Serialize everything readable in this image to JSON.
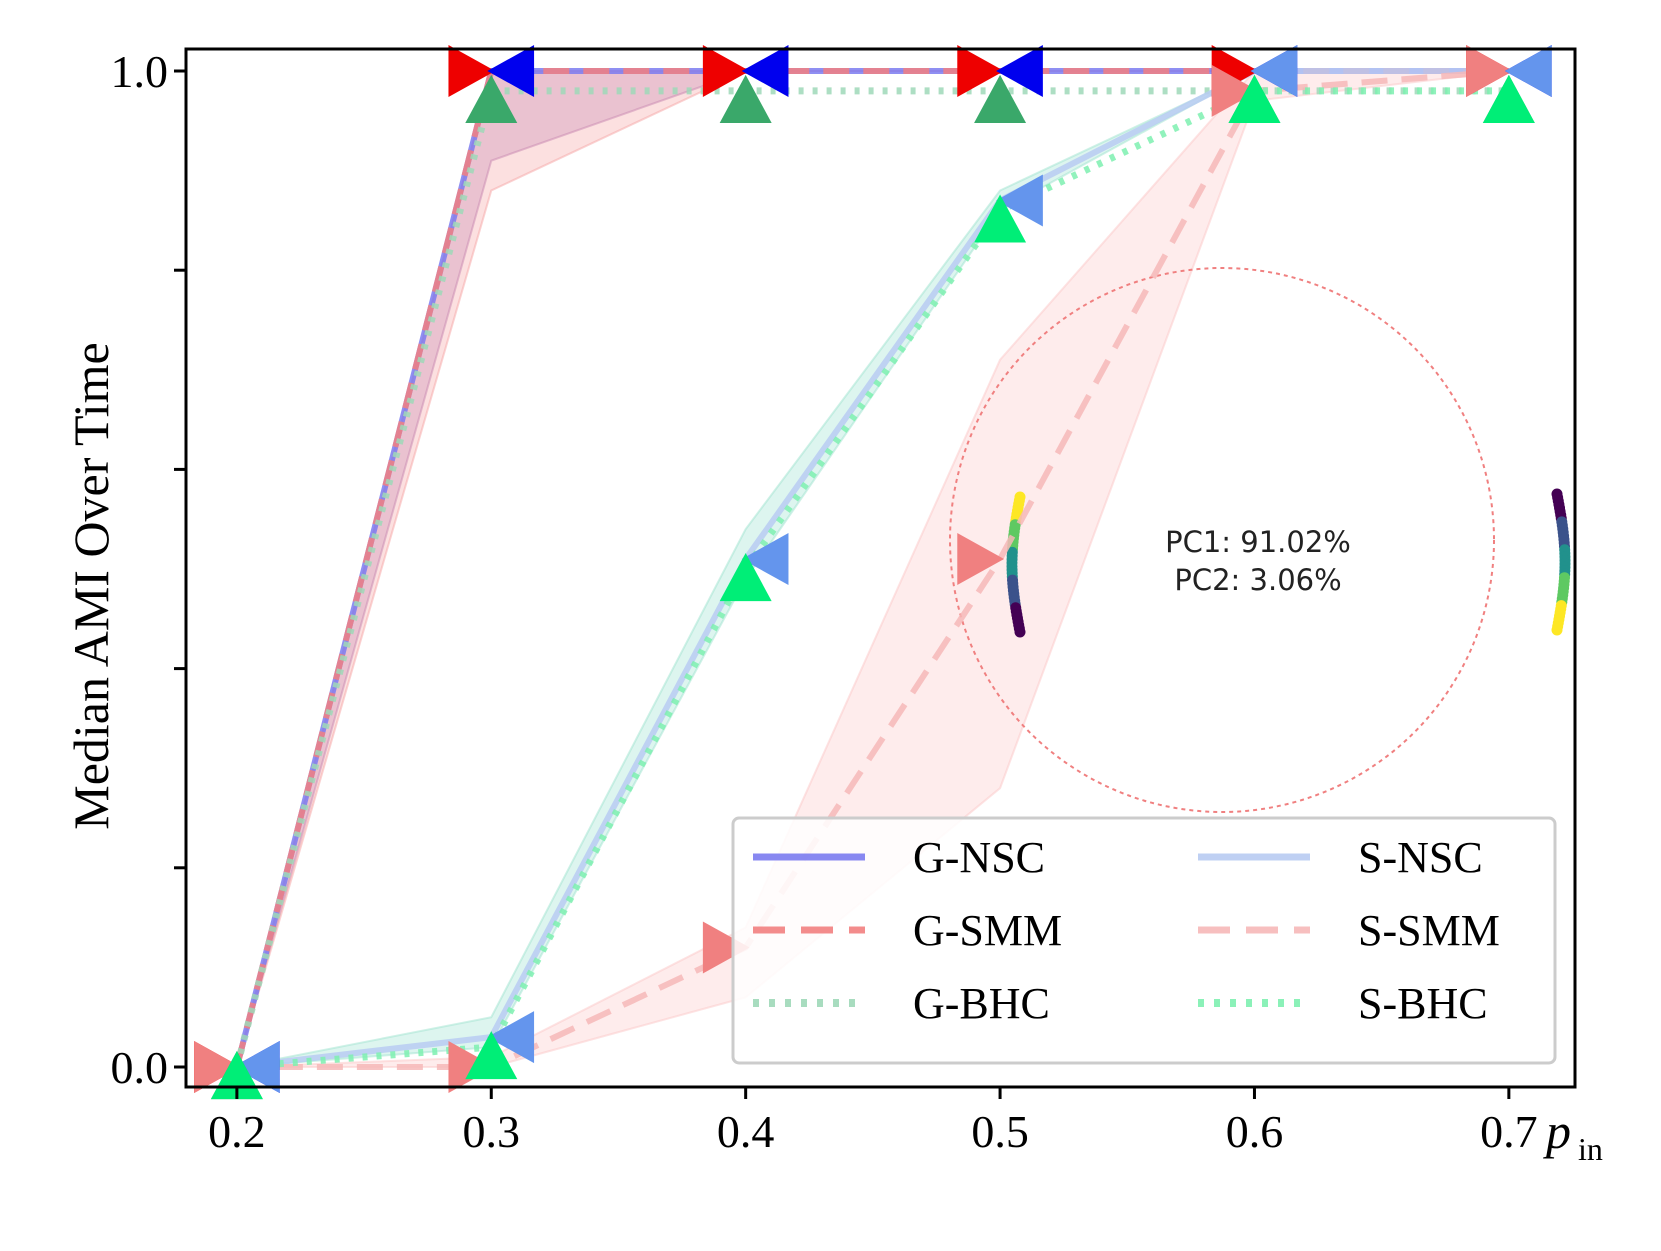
{
  "chart_data": {
    "type": "line",
    "title": "",
    "xlabel": "p",
    "xlabel_sub": "in",
    "ylabel": "Median AMI Over Time",
    "xlim": [
      0.18,
      0.726
    ],
    "ylim": [
      0.0,
      1.0
    ],
    "x_ticks": [
      0.2,
      0.3,
      0.4,
      0.5,
      0.6,
      0.7
    ],
    "x_tick_labels": [
      "0.2",
      "0.3",
      "0.4",
      "0.5",
      "0.6",
      "0.7"
    ],
    "y_tick_labels": [
      "0.0",
      "1.0"
    ],
    "y_minor_ticks": [
      0.2,
      0.4,
      0.6,
      0.8
    ],
    "x": [
      0.2,
      0.3,
      0.4,
      0.5,
      0.6,
      0.7
    ],
    "series": [
      {
        "name": "G-NSC",
        "values": [
          0.0,
          1.0,
          1.0,
          1.0,
          1.0,
          1.0
        ],
        "color": "#7b7bf0",
        "style": "solid",
        "marker": "left-triangle",
        "marker_color": "#0000ee",
        "band": [
          [
            0.0,
            0.0
          ],
          [
            0.91,
            1.0
          ],
          [
            1.0,
            1.0
          ],
          [
            1.0,
            1.0
          ],
          [
            1.0,
            1.0
          ],
          [
            1.0,
            1.0
          ]
        ],
        "band_color": "#b07ab8"
      },
      {
        "name": "G-SMM",
        "values": [
          0.0,
          1.0,
          1.0,
          1.0,
          1.0,
          1.0
        ],
        "color": "#f28080",
        "style": "dashed",
        "marker": "right-triangle",
        "marker_color": "#ee0000",
        "band": [
          [
            0.0,
            0.0
          ],
          [
            0.88,
            1.0
          ],
          [
            1.0,
            1.0
          ],
          [
            1.0,
            1.0
          ],
          [
            1.0,
            1.0
          ],
          [
            1.0,
            1.0
          ]
        ],
        "band_color": "#f6a5a5"
      },
      {
        "name": "G-BHC",
        "values": [
          0.0,
          0.98,
          0.98,
          0.98,
          0.98,
          0.98
        ],
        "color": "#9fd8b8",
        "style": "dotted",
        "marker": "up-triangle",
        "marker_color": "#3aa86a"
      },
      {
        "name": "S-NSC",
        "values": [
          0.0,
          0.03,
          0.51,
          0.87,
          1.0,
          1.0
        ],
        "color": "#b8cbf2",
        "style": "solid",
        "marker": "left-triangle",
        "marker_color": "#6495ed",
        "band": [
          [
            0.0,
            0.0
          ],
          [
            0.02,
            0.05
          ],
          [
            0.49,
            0.54
          ],
          [
            0.86,
            0.88
          ],
          [
            1.0,
            1.0
          ],
          [
            1.0,
            1.0
          ]
        ],
        "band_color": "#9fe3d0"
      },
      {
        "name": "S-SMM",
        "values": [
          0.0,
          0.0,
          0.12,
          0.51,
          0.98,
          1.0
        ],
        "color": "#f6b8b8",
        "style": "dashed",
        "marker": "right-triangle",
        "marker_color": "#f08080",
        "band": [
          [
            0.0,
            0.0
          ],
          [
            0.0,
            0.01
          ],
          [
            0.07,
            0.14
          ],
          [
            0.28,
            0.71
          ],
          [
            0.97,
            1.0
          ],
          [
            1.0,
            1.0
          ]
        ],
        "band_color": "#fcc8c8"
      },
      {
        "name": "S-BHC",
        "values": [
          0.0,
          0.02,
          0.5,
          0.86,
          0.98,
          0.98
        ],
        "color": "#7ef0b0",
        "style": "dotted",
        "marker": "up-triangle",
        "marker_color": "#00ee77"
      }
    ],
    "legend_position": "lower-right",
    "legend_columns": 2,
    "inset": {
      "shape": "circle",
      "text_line1": "PC1: 91.02%",
      "text_line2": "PC2: 3.06%",
      "border_color": "#f08080",
      "point_colormap": "viridis"
    }
  }
}
